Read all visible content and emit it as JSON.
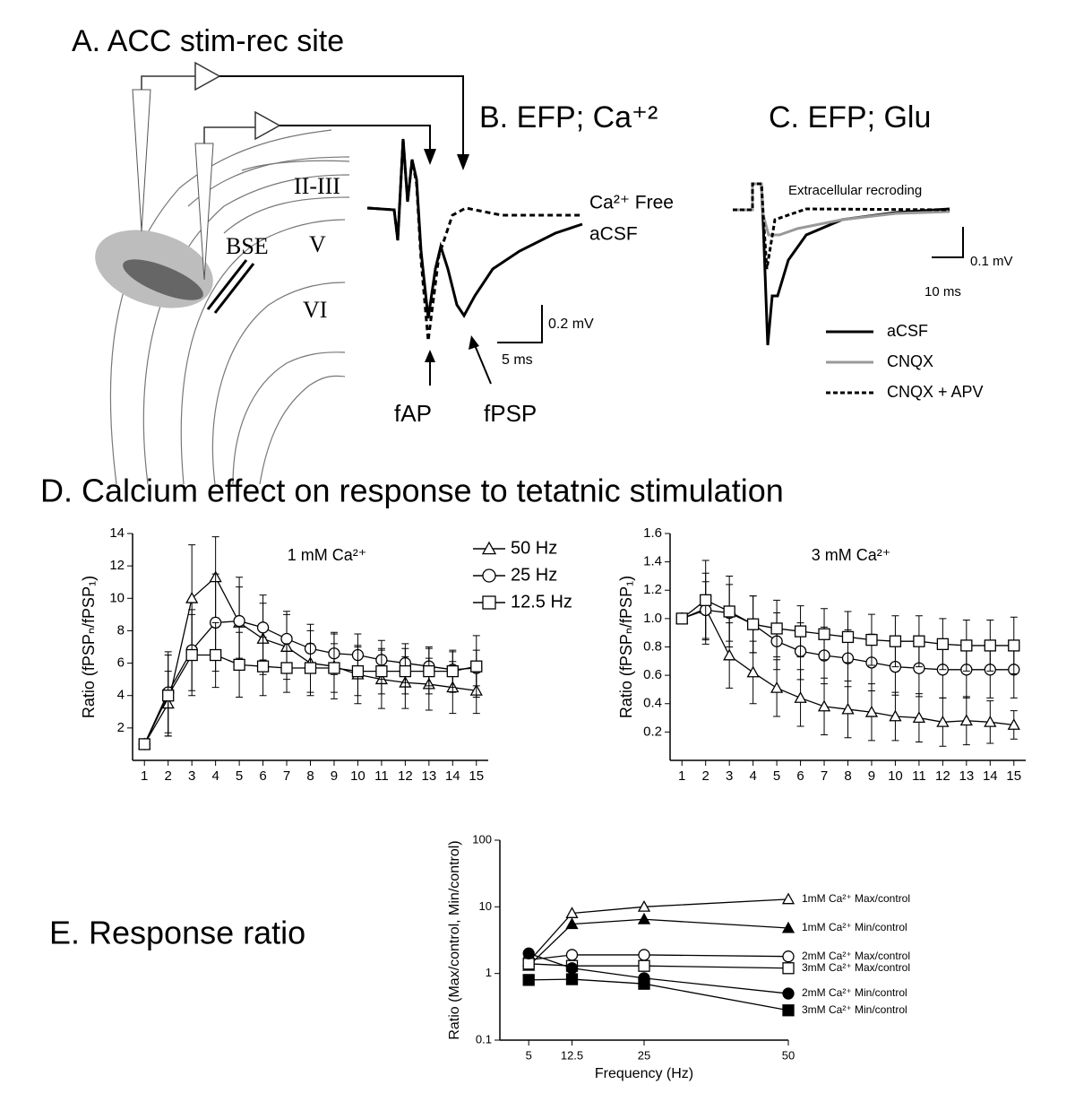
{
  "panel_a": {
    "title": "A. ACC stim-rec site",
    "layers": [
      "II-III",
      "V",
      "VI"
    ],
    "electrode_label": "BSE"
  },
  "panel_b": {
    "title": "B. EFP; Ca⁺²",
    "trace_label": [
      "Ca²⁺ Free",
      "aCSF"
    ],
    "scale_y": "0.2 mV",
    "scale_x": "5 ms",
    "arrows": [
      "fAP",
      "fPSP"
    ]
  },
  "panel_c": {
    "title": "C. EFP; Glu",
    "note": "Extracellular recroding",
    "scale_y": "0.1 mV",
    "scale_x": "10 ms",
    "legend": [
      "aCSF",
      "CNQX",
      "CNQX + APV"
    ]
  },
  "panel_d": {
    "title": "D. Calcium effect on response to tetatnic stimulation"
  },
  "panel_e": {
    "title": "E. Response ratio"
  },
  "chart_data": [
    {
      "type": "line",
      "title": "1 mM Ca²⁺",
      "y_label": "Ratio (fPSPₙ/fPSP₁)",
      "x": [
        1,
        2,
        3,
        4,
        5,
        6,
        7,
        8,
        9,
        10,
        11,
        12,
        13,
        14,
        15
      ],
      "xlim": [
        0.5,
        15.5
      ],
      "xticks": [
        1,
        2,
        3,
        4,
        5,
        6,
        7,
        8,
        9,
        10,
        11,
        12,
        13,
        14,
        15
      ],
      "ylim": [
        0,
        14
      ],
      "yticks": [
        2,
        4,
        6,
        8,
        10,
        12,
        14
      ],
      "legend": "right",
      "series": [
        {
          "name": "50 Hz",
          "marker": "triangle",
          "color": "#000000",
          "fill": "#ffffff",
          "values": [
            1,
            3.5,
            10,
            11.3,
            8.5,
            7.5,
            7,
            6,
            5.8,
            5.3,
            5,
            4.8,
            4.7,
            4.5,
            4.3
          ],
          "errors": [
            0,
            2,
            3.3,
            2.5,
            2.2,
            2.2,
            2,
            2,
            2,
            1.8,
            1.8,
            1.6,
            1.6,
            1.6,
            1.4
          ]
        },
        {
          "name": "25 Hz",
          "marker": "circle",
          "color": "#000000",
          "fill": "#ffffff",
          "values": [
            1,
            4.2,
            6.8,
            8.5,
            8.6,
            8.2,
            7.5,
            6.9,
            6.6,
            6.5,
            6.2,
            6,
            5.8,
            5.6,
            5.7
          ],
          "errors": [
            0,
            2.5,
            2.5,
            3,
            2.7,
            2,
            1.7,
            1.5,
            1.3,
            1.3,
            1.2,
            1.2,
            1.2,
            1.1,
            1.1
          ]
        },
        {
          "name": "12.5 Hz",
          "marker": "square",
          "color": "#000000",
          "fill": "#ffffff",
          "values": [
            1,
            4,
            6.5,
            6.5,
            5.9,
            5.8,
            5.7,
            5.7,
            5.7,
            5.5,
            5.5,
            5.5,
            5.5,
            5.5,
            5.8
          ],
          "errors": [
            0,
            2.5,
            2.5,
            2,
            2,
            1.8,
            1.5,
            1.5,
            1.5,
            1.5,
            1.4,
            1.4,
            1.4,
            1.3,
            1.9
          ]
        }
      ]
    },
    {
      "type": "line",
      "title": "3 mM Ca²⁺",
      "y_label": "Ratio (fPSPₙ/fPSP₁)",
      "x": [
        1,
        2,
        3,
        4,
        5,
        6,
        7,
        8,
        9,
        10,
        11,
        12,
        13,
        14,
        15
      ],
      "xlim": [
        0.5,
        15.5
      ],
      "xticks": [
        1,
        2,
        3,
        4,
        5,
        6,
        7,
        8,
        9,
        10,
        11,
        12,
        13,
        14,
        15
      ],
      "ylim": [
        0,
        1.6
      ],
      "yticks": [
        0.2,
        0.4,
        0.6,
        0.8,
        {
          "value": 1,
          "label": "1.0"
        },
        1.2,
        1.4,
        1.6
      ],
      "series": [
        {
          "marker": "triangle",
          "color": "#000000",
          "fill": "#ffffff",
          "values": [
            1,
            1.07,
            0.74,
            0.62,
            0.51,
            0.44,
            0.38,
            0.36,
            0.34,
            0.31,
            0.3,
            0.27,
            0.28,
            0.27,
            0.25
          ],
          "errors": [
            0,
            0.25,
            0.23,
            0.22,
            0.2,
            0.2,
            0.2,
            0.2,
            0.2,
            0.17,
            0.17,
            0.17,
            0.17,
            0.15,
            0.1
          ]
        },
        {
          "marker": "circle",
          "color": "#000000",
          "fill": "#ffffff",
          "values": [
            1,
            1.06,
            1.04,
            0.96,
            0.84,
            0.77,
            0.74,
            0.72,
            0.69,
            0.66,
            0.65,
            0.64,
            0.64,
            0.64,
            0.64
          ],
          "errors": [
            0,
            0.2,
            0.2,
            0.2,
            0.2,
            0.2,
            0.2,
            0.2,
            0.2,
            0.2,
            0.2,
            0.2,
            0.2,
            0.2,
            0.2
          ]
        },
        {
          "marker": "square",
          "color": "#000000",
          "fill": "#ffffff",
          "values": [
            1,
            1.13,
            1.05,
            0.96,
            0.93,
            0.91,
            0.89,
            0.87,
            0.85,
            0.84,
            0.84,
            0.82,
            0.81,
            0.81,
            0.81
          ],
          "errors": [
            0,
            0.28,
            0.25,
            0.2,
            0.2,
            0.18,
            0.18,
            0.18,
            0.18,
            0.18,
            0.18,
            0.18,
            0.18,
            0.18,
            0.2
          ]
        }
      ]
    },
    {
      "type": "line",
      "x_label": "Frequency (Hz)",
      "y_label": "Ratio (Max/control, Min/control)",
      "log_y": true,
      "x": [
        5,
        12.5,
        25,
        50
      ],
      "xlim": [
        0,
        50
      ],
      "xticks": [
        5,
        12.5,
        25,
        50
      ],
      "ylim": [
        0.1,
        100
      ],
      "yticks": [
        0.1,
        1,
        10,
        100
      ],
      "legend": "right",
      "series": [
        {
          "name": "1mM Ca²⁺ Max/control",
          "marker": "triangle",
          "color": "#000000",
          "fill": "#ffffff",
          "values": [
            1.5,
            8,
            10,
            13
          ]
        },
        {
          "name": "1mM Ca²⁺ Min/control",
          "marker": "triangle",
          "color": "#000000",
          "fill": "#000000",
          "values": [
            1.3,
            5.5,
            6.5,
            4.8
          ]
        },
        {
          "name": "2mM Ca²⁺ Max/control",
          "marker": "circle",
          "color": "#000000",
          "fill": "#ffffff",
          "values": [
            1.6,
            1.9,
            1.9,
            1.8
          ]
        },
        {
          "name": "3mM Ca²⁺ Max/control",
          "marker": "square",
          "color": "#000000",
          "fill": "#ffffff",
          "values": [
            1.4,
            1.3,
            1.3,
            1.2
          ]
        },
        {
          "name": "2mM Ca²⁺ Min/control",
          "marker": "circle",
          "color": "#000000",
          "fill": "#000000",
          "values": [
            2,
            1.2,
            0.85,
            0.5
          ]
        },
        {
          "name": "3mM Ca²⁺ Min/control",
          "marker": "square",
          "color": "#000000",
          "fill": "#000000",
          "values": [
            0.8,
            0.82,
            0.7,
            0.28
          ]
        }
      ]
    }
  ]
}
